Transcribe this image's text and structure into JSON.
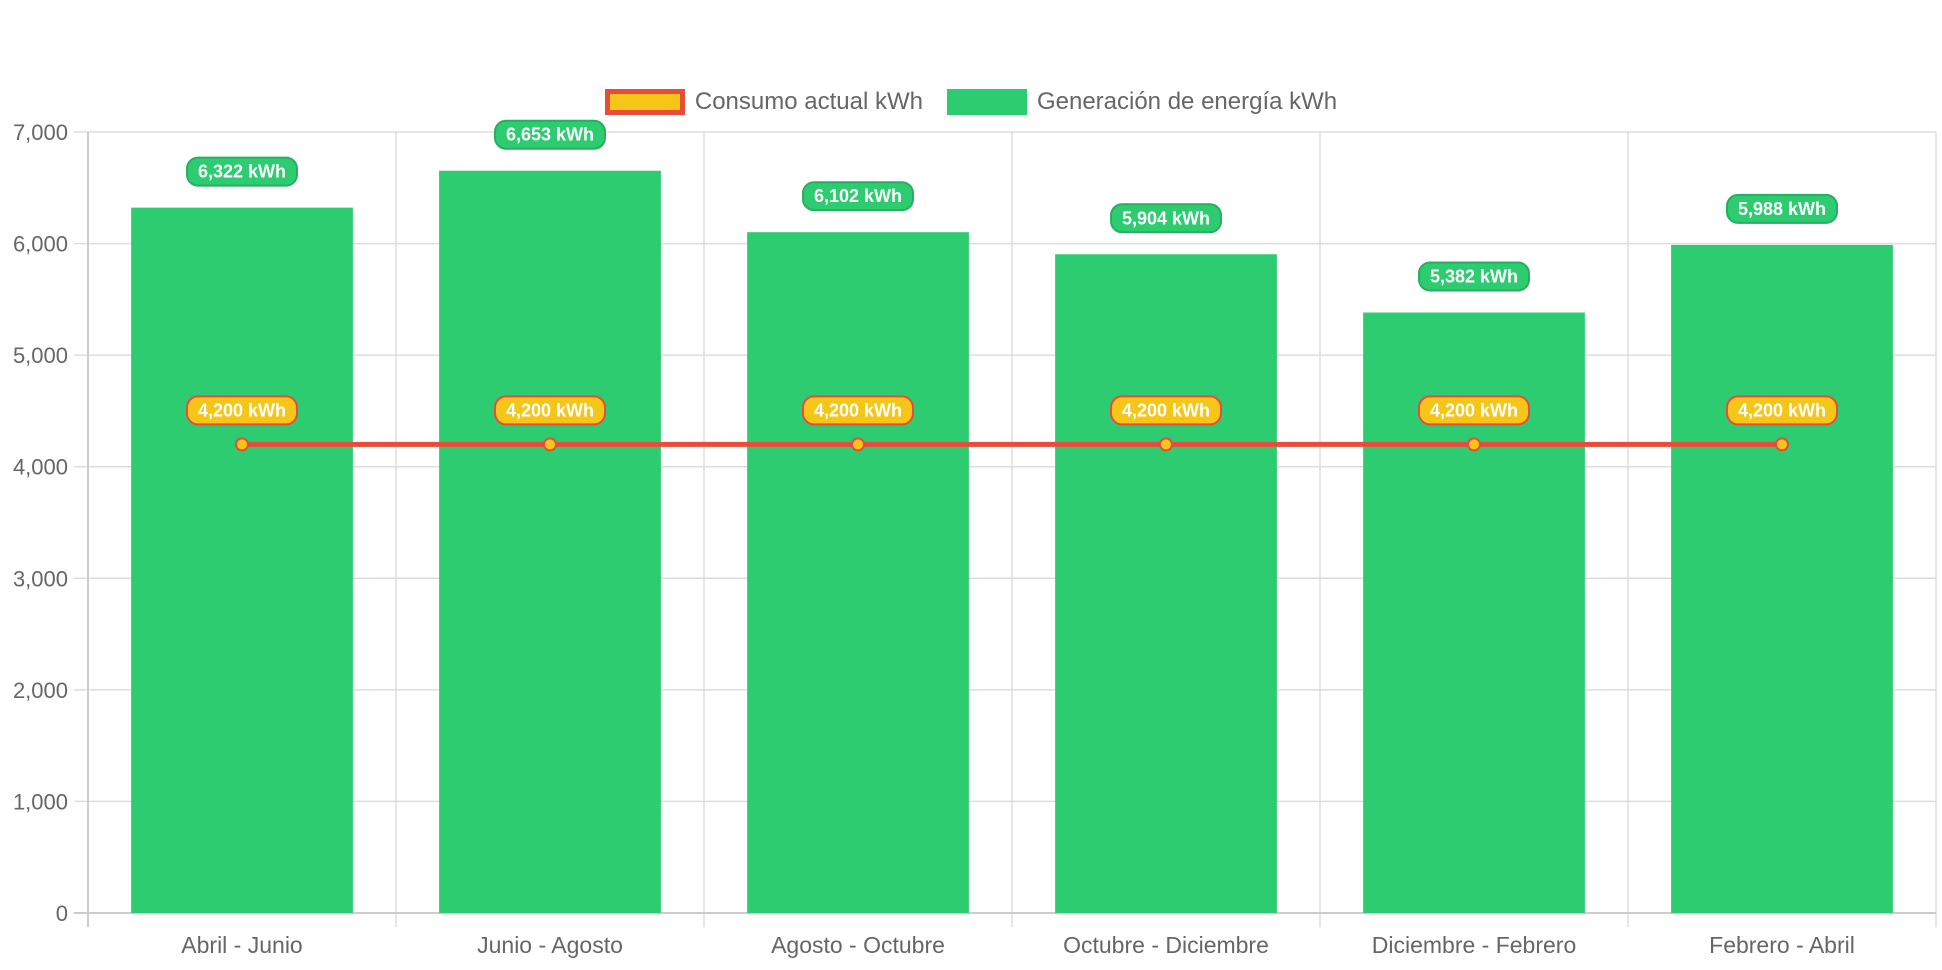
{
  "chart_data": {
    "type": "bar",
    "categories": [
      "Abril - Junio",
      "Junio - Agosto",
      "Agosto - Octubre",
      "Octubre - Diciembre",
      "Diciembre - Febrero",
      "Febrero - Abril"
    ],
    "ylim": [
      0,
      7000
    ],
    "yticks": [
      0,
      1000,
      2000,
      3000,
      4000,
      5000,
      6000,
      7000
    ],
    "ytick_labels": [
      "0",
      "1,000",
      "2,000",
      "3,000",
      "4,000",
      "5,000",
      "6,000",
      "7,000"
    ],
    "grid": true,
    "legend_position": "top",
    "series": [
      {
        "name": "Consumo actual kWh",
        "type": "line",
        "values": [
          4200,
          4200,
          4200,
          4200,
          4200,
          4200
        ],
        "labels": [
          "4,200 kWh",
          "4,200 kWh",
          "4,200 kWh",
          "4,200 kWh",
          "4,200 kWh",
          "4,200 kWh"
        ],
        "color": "#e74c3c",
        "fill": "#f5c518"
      },
      {
        "name": "Generación de energía kWh",
        "type": "bar",
        "values": [
          6322,
          6653,
          6102,
          5904,
          5382,
          5988
        ],
        "labels": [
          "6,322 kWh",
          "6,653 kWh",
          "6,102 kWh",
          "5,904 kWh",
          "5,382 kWh",
          "5,988 kWh"
        ],
        "color": "#2ecc71",
        "border": "#27ae60"
      }
    ]
  }
}
